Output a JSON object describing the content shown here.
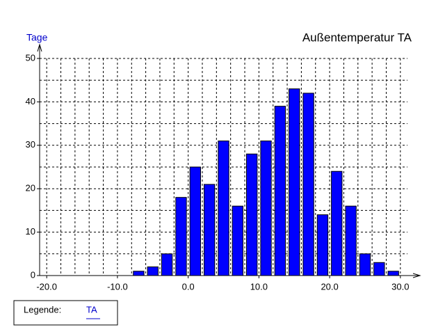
{
  "chart_data": {
    "type": "histogram",
    "title": "Außentemperatur  TA",
    "y_label": "Tage",
    "bins": [
      -8,
      -6,
      -4,
      -2,
      0,
      2,
      4,
      6,
      8,
      10,
      12,
      14,
      16,
      18,
      20,
      22,
      24,
      26,
      28,
      30
    ],
    "values": [
      1,
      2,
      5,
      18,
      25,
      21,
      31,
      16,
      28,
      31,
      39,
      43,
      42,
      14,
      24,
      16,
      5,
      3,
      1
    ],
    "color": "#0000ff",
    "xlim": [
      -21,
      31
    ],
    "xticks": [
      {
        "value": -20,
        "label": "-20.0"
      },
      {
        "value": -10,
        "label": "-10.0"
      },
      {
        "value": 0,
        "label": "0.0"
      },
      {
        "value": 10,
        "label": "10.0"
      },
      {
        "value": 20,
        "label": "20.0"
      },
      {
        "value": 30,
        "label": "30.0"
      }
    ],
    "ylim": [
      0,
      50
    ],
    "yticks": [
      0,
      10,
      20,
      30,
      40,
      50
    ],
    "grid": true,
    "legend_title": "Legende:",
    "legend": [
      {
        "name": "TA"
      }
    ]
  }
}
